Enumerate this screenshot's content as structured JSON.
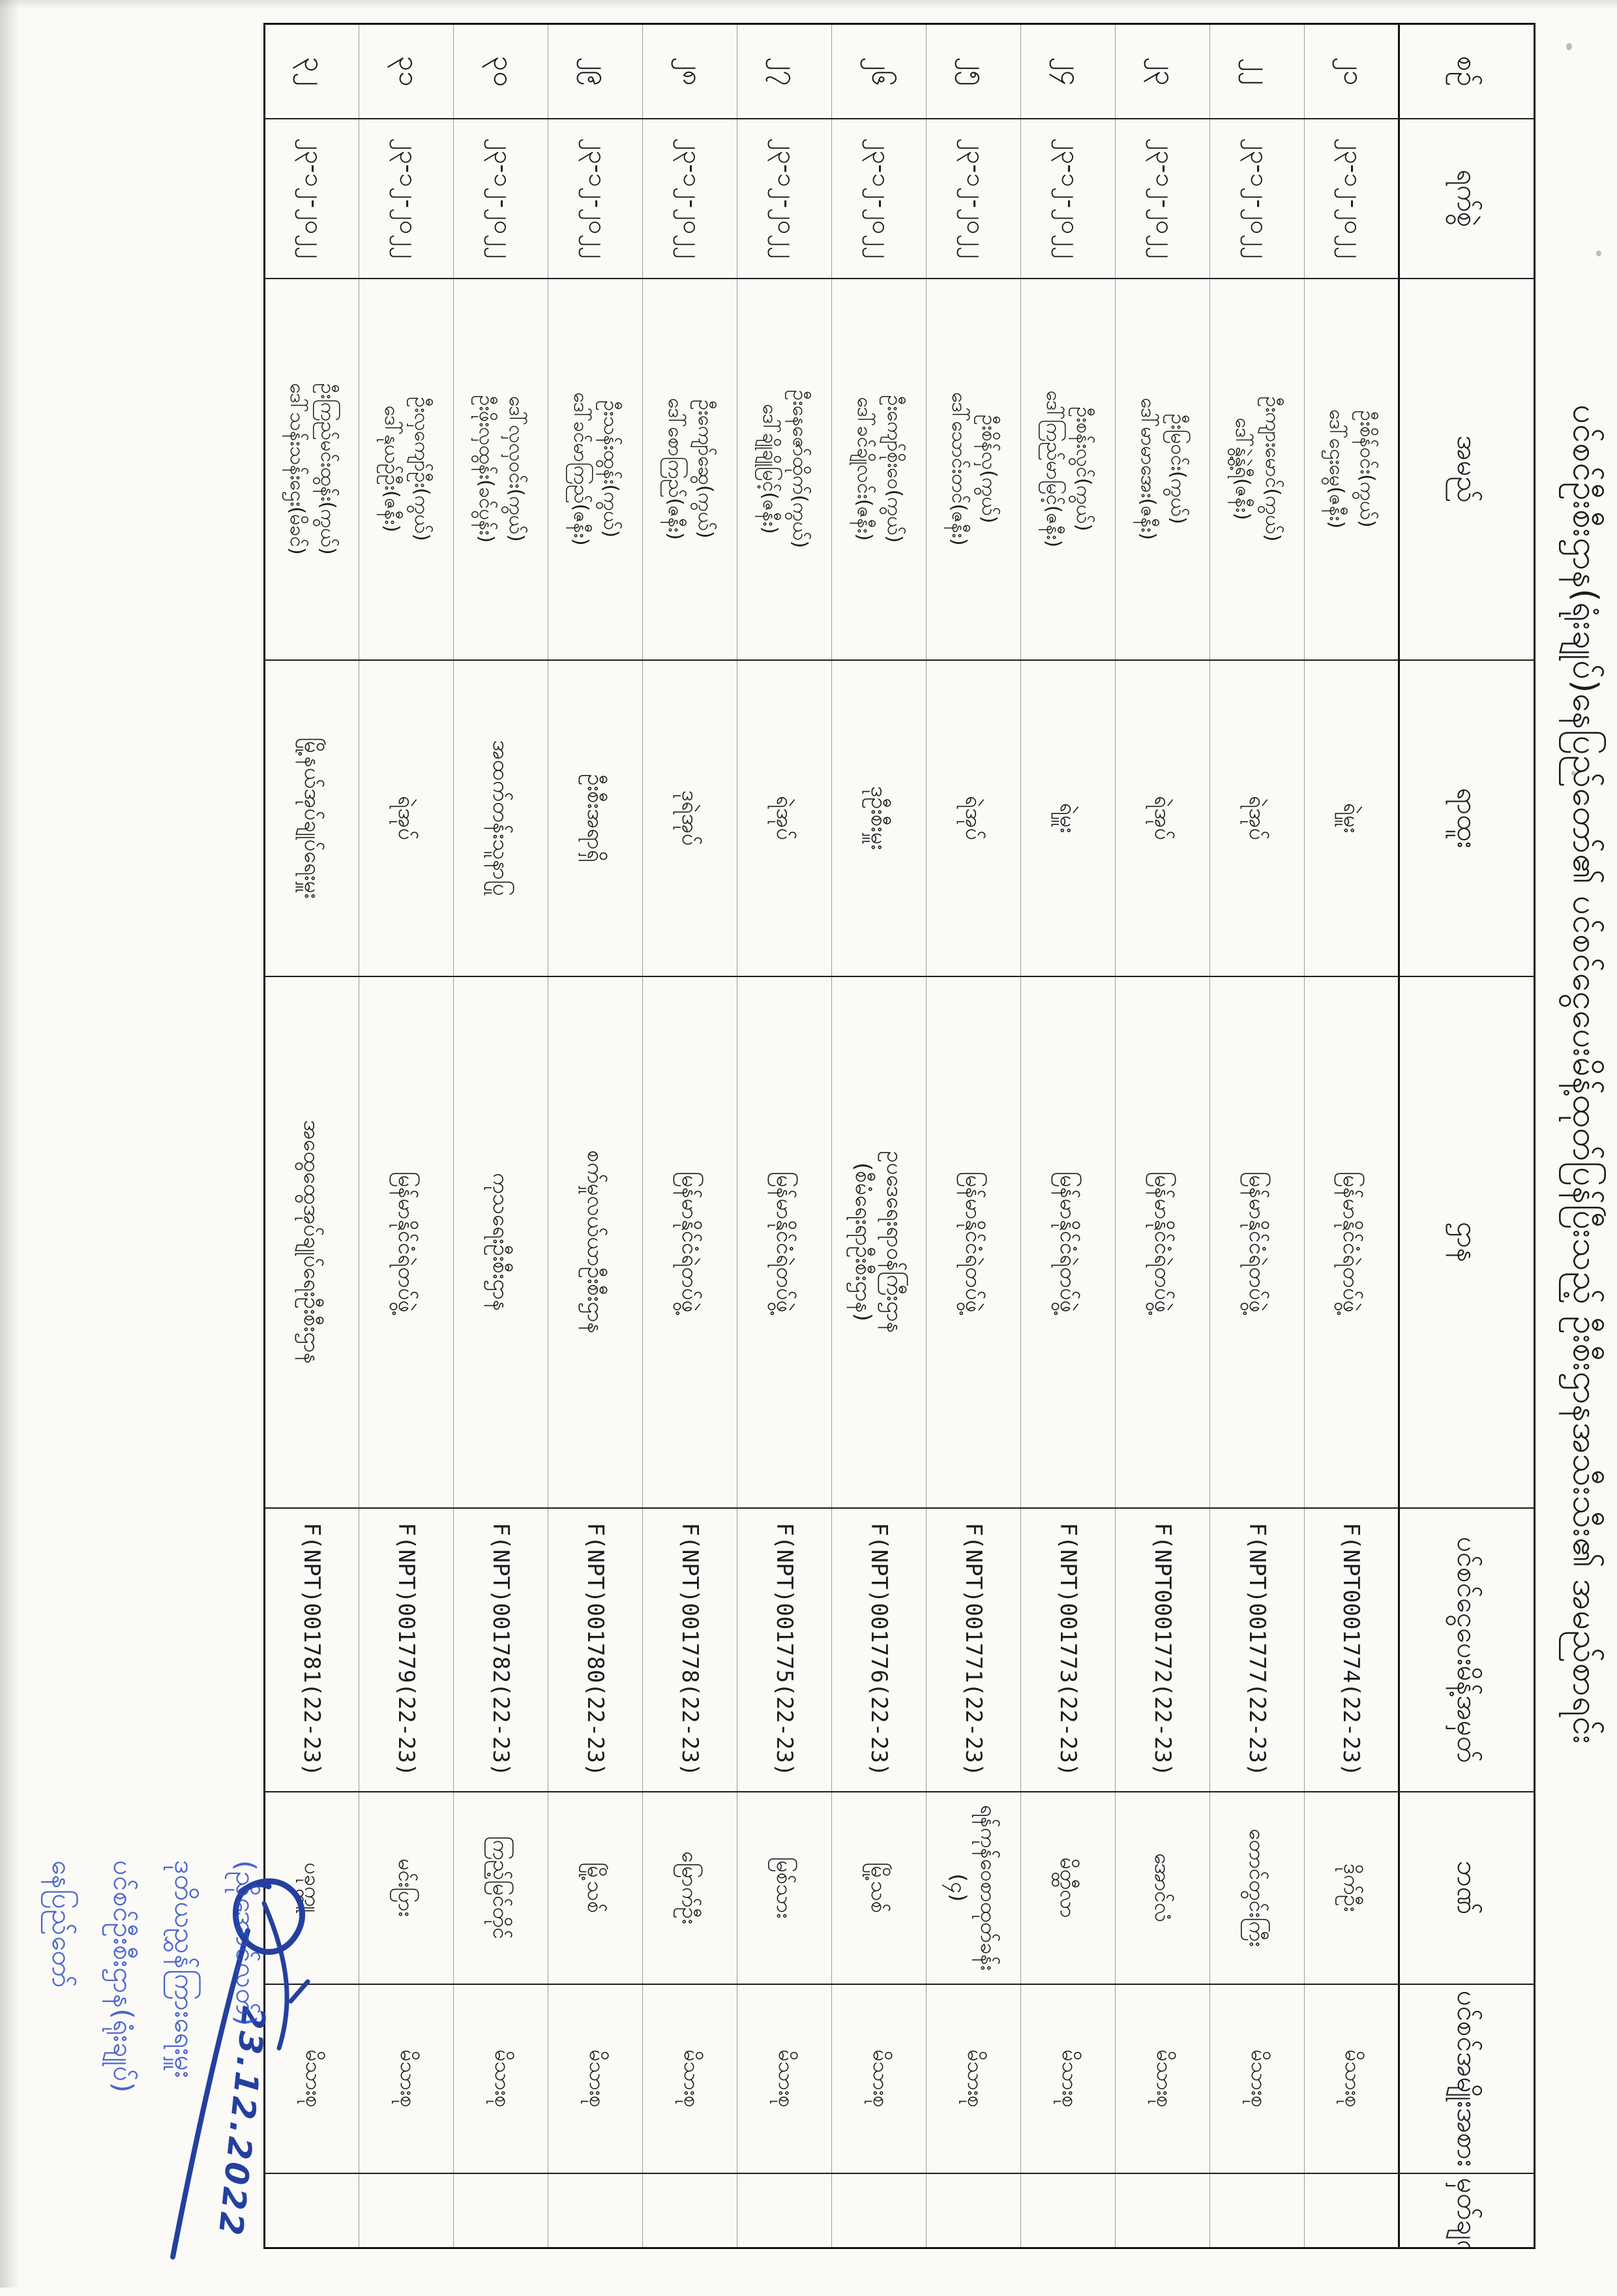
{
  "title": "ပင်စင်ဦးစီးဌာန(ရုံးချုပ်)နေပြည်တော်၏ ပင်စင်ငွေပေးမိန့်ထုတ်ပြန်ပြီးသည့် ဦးစီးဌာနအသီးသီး၏ အမည်စာရင်း",
  "table": {
    "headers": [
      "စဉ်",
      "ရက်စွဲ",
      "အမည်",
      "ရာထူး",
      "ဌာန",
      "ပင်စင်ငွေပေးမိန့်အမှတ်",
      "ဘဏ်",
      "ပင်စင်အမျိုးအစား",
      "မှတ်ချက်"
    ],
    "rows": [
      {
        "no": "၂၁",
        "date": "၂၃-၁၂-၂၀၂၂",
        "name1": "ဦးစိန်ဝင်း(ကွယ်)",
        "name2": "ဒေါ်ဌေးမွေ(ဇနီး)",
        "position": "ရဲမှူး",
        "dept1": "မြန်မာနိုင်ငံရဲတပ်ဖွဲ့",
        "dept2": "",
        "order_no": "F(NPT0001774(22-23)",
        "bank1": "ဒိုက်ဦး",
        "bank2": "",
        "pension_type": "မိသားစု",
        "remark": ""
      },
      {
        "no": "၂၂",
        "date": "၂၃-၁၂-၂၀၂၂",
        "name1": "ဦးကျားမောင်(ကွယ်)",
        "name2": "ဒေါ်နွဲ့နွဲ့ရီ(ဇနီး)",
        "position": "ရဲအုပ်",
        "dept1": "မြန်မာနိုင်ငံရဲတပ်ဖွဲ့",
        "dept2": "",
        "order_no": "F(NPT)001777(22-23)",
        "bank1": "တောင်တွင်းကြီး",
        "bank2": "",
        "pension_type": "မိသားစု",
        "remark": ""
      },
      {
        "no": "၂၃",
        "date": "၂၃-၁၂-၂၀၂၂",
        "name1": "ဦးမြဝင်း(ကွယ်)",
        "name2": "ဒေါ်မာမာအေး(ဇနီး)",
        "position": "ရဲအုပ်",
        "dept1": "မြန်မာနိုင်ငံရဲတပ်ဖွဲ့",
        "dept2": "",
        "order_no": "F(NPT0001772(22-23)",
        "bank1": "အောင်လံ",
        "bank2": "",
        "pension_type": "မိသားစု",
        "remark": ""
      },
      {
        "no": "၂၄",
        "date": "၂၃-၁၂-၂၀၂၂",
        "name1": "ဦးစန်းလွင်(ကွယ်)",
        "name2": "ဒေါ်ကြည်မာမြင့်(ဇနီး)",
        "position": "ရဲမှူး",
        "dept1": "မြန်မာနိုင်ငံရဲတပ်ဖွဲ့",
        "dept2": "",
        "order_no": "F(NPT)001773(22-23)",
        "bank1": "မိတ္ထီလာ",
        "bank2": "",
        "pension_type": "မိသားစု",
        "remark": ""
      },
      {
        "no": "၂၅",
        "date": "၂၃-၁၂-၂၀၂၂",
        "name1": "ဦးစိန်လှ(ကွယ်)",
        "name2": "ဒေါ်သောင်းတင်(ဇနီး)",
        "position": "ရဲအုပ်",
        "dept1": "မြန်မာနိုင်ငံရဲတပ်ဖွဲ့",
        "dept2": "",
        "order_no": "F(NPT)001771(22-23)",
        "bank1": "ရန်ကုန်ဝေစာထုတ်ခန်း",
        "bank2": "(၄)",
        "pension_type": "မိသားစု",
        "remark": ""
      },
      {
        "no": "၂၆",
        "date": "၂၃-၁၂-၂၀၂၂",
        "name1": "ဦးကျော်စိုးဝေ(ကွယ်)",
        "name2": "ဒေါ်ခင်ချိုလင်း(ဇနီး)",
        "position": "ဒုဦးစီးမှူး",
        "dept1": "ဥပဒေရေးရာဝန်ကြီးဌာန",
        "dept2": "(စီမံရေးရာဦးစီးဌာန)",
        "order_no": "F(NPT)001776(22-23)",
        "bank1": "မြို့သစ်",
        "bank2": "",
        "pension_type": "မိသားစု",
        "remark": ""
      },
      {
        "no": "၂၇",
        "date": "၂၃-၁၂-၂၀၂၂",
        "name1": "ဦးနေဇော်ထိုက်(ကွယ်)",
        "name2": "ဒေါ်ချိုချိုမြင့်(ဇနီး)",
        "position": "ရဲအုပ်",
        "dept1": "မြန်မာနိုင်ငံရဲတပ်ဖွဲ့",
        "dept2": "",
        "order_no": "F(NPT)001775(22-23)",
        "bank1": "မြစ်သား",
        "bank2": "",
        "pension_type": "မိသားစု",
        "remark": ""
      },
      {
        "no": "၂၈",
        "date": "၂၃-၁၂-၂၀၂၂",
        "name1": "ဦးကျော်ဆွေ(ကွယ်)",
        "name2": "ဒေါ်စောကြည်(ဇနီး)",
        "position": "ဒုရဲအုပ်",
        "dept1": "မြန်မာနိုင်ငံရဲတပ်ဖွဲ့",
        "dept2": "",
        "order_no": "F(NPT)001778(22-23)",
        "bank1": "မြောက်ဦး",
        "bank2": "",
        "pension_type": "မိသားစု",
        "remark": ""
      },
      {
        "no": "၂၉",
        "date": "၂၃-၁၂-၂၀၂၂",
        "name1": "ဦးသန်းထွန်း(ကွယ်)",
        "name2": "ဒေါ်ခင်မာကြည်(ဇနီး)",
        "position": "ဦးစီးအရာရှိ",
        "dept1": "စက်မှုလယ်ယာဦးစီးဌာန",
        "dept2": "",
        "order_no": "F(NPT)001780(22-23)",
        "bank1": "မြို့သစ်",
        "bank2": "",
        "pension_type": "မိသားစု",
        "remark": ""
      },
      {
        "no": "၃၀",
        "date": "၂၃-၁၂-၂၀၂၂",
        "name1": "ဒေါ်လှလှဝင်း(ကွယ်)",
        "name2": "ဦးဖိုးလှထွန်း(ခင်ပွန်း)",
        "position": "အထက်တန်းသူနာပြု",
        "dept1": "ကုသရေးဦးစီးဌာန",
        "dept2": "",
        "order_no": "F(NPT)001782(22-23)",
        "bank1": "ကြည့်မြင်တိုင်",
        "bank2": "",
        "pension_type": "မိသားစု",
        "remark": ""
      },
      {
        "no": "၃၁",
        "date": "၂၃-၁၂-၂၀၂၂",
        "name1": "ဦးလှကျော်ဦး(ကွယ်)",
        "name2": "ဒေါ်နုယဉ်ဦး(ဇနီး)",
        "position": "ရဲအုပ်",
        "dept1": "မြန်မာနိုင်ငံရဲတပ်ဖွဲ့",
        "dept2": "",
        "order_no": "F(NPT)001779(22-23)",
        "bank1": "မင်းပြား",
        "bank2": "",
        "pension_type": "မိသားစု",
        "remark": ""
      },
      {
        "no": "၃၂",
        "date": "၂၃-၁၂-၂၀၂၂",
        "name1": "ဦးကြည်မင်းထွန်း(ကွယ်)",
        "name2": "ဒေါ်သန်းသန်းဌေး(မိခင်)",
        "position": "မြို့နယ်အုပ်ချုပ်ရေးမှူး",
        "dept1": "အထွေထွေအုပ်ချုပ်ရေးဦးစီးဌာန",
        "dept2": "",
        "order_no": "F(NPT)001781(22-23)",
        "bank1": "ပခုက္ကူ",
        "bank2": "",
        "pension_type": "မိသားစု",
        "remark": ""
      }
    ]
  },
  "stamp": {
    "line1": "(ညိုအောင်လတ်)",
    "line2": "ဒုတိယညွှန်ကြားရေးမှူး",
    "line3": "ပင်စင်ဦးစီးဌာန(ရုံးချုပ်)",
    "line4": "နေပြည်တော်"
  },
  "signature_date": "23.12.2022",
  "ink_color": "#24409e",
  "stamp_color": "#2e4fc5"
}
